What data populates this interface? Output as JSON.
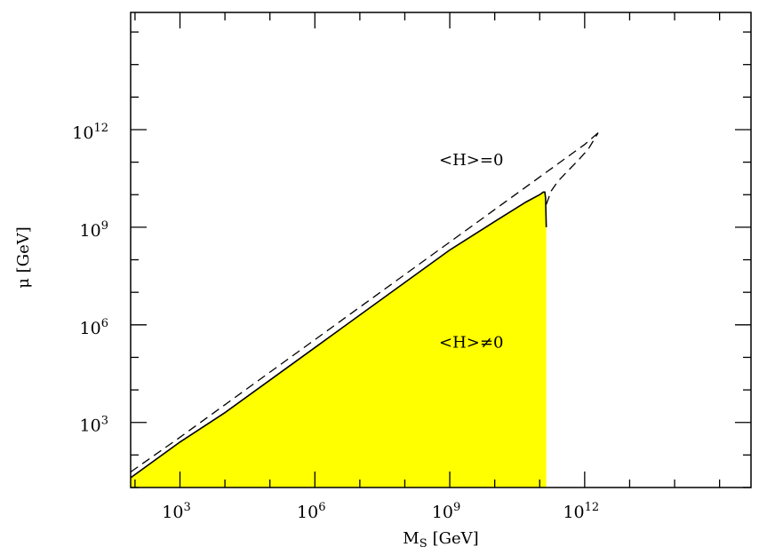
{
  "chart_data": {
    "type": "area",
    "xlabel": "M",
    "xlabel_sub": "S",
    "xlabel_unit": "[GeV]",
    "ylabel": "μ [GeV]",
    "x_scale": "log",
    "y_scale": "log",
    "xlim": [
      80,
      5000000000000000
    ],
    "ylim": [
      10,
      4000000000000000
    ],
    "x_ticks": [
      {
        "value": 1000,
        "base": "10",
        "exp": "3"
      },
      {
        "value": 1000000,
        "base": "10",
        "exp": "6"
      },
      {
        "value": 1000000000,
        "base": "10",
        "exp": "9"
      },
      {
        "value": 1000000000000,
        "base": "10",
        "exp": "12"
      }
    ],
    "y_ticks": [
      {
        "value": 1000,
        "base": "10",
        "exp": "3"
      },
      {
        "value": 1000000,
        "base": "10",
        "exp": "6"
      },
      {
        "value": 1000000000,
        "base": "10",
        "exp": "9"
      },
      {
        "value": 1000000000000,
        "base": "10",
        "exp": "12"
      }
    ],
    "fill_color": "#ffff00",
    "series": [
      {
        "style": "solid",
        "fill": true,
        "x": [
          80,
          1000,
          10000,
          100000,
          1000000,
          10000000,
          100000000,
          1000000000,
          10000000000,
          50000000000,
          100000000000,
          120000000000,
          130000000000,
          135000000000,
          140000000000
        ],
        "y": [
          20,
          250,
          2000,
          20000,
          200000,
          2000000,
          20000000,
          200000000,
          1500000000,
          6000000000,
          10000000000,
          12000000000,
          12000000000,
          8000000000,
          1000000000
        ]
      },
      {
        "style": "dashed",
        "x": [
          80,
          1000,
          10000,
          100000,
          1000000,
          10000000,
          100000000,
          1000000000,
          10000000000,
          100000000000,
          1000000000000,
          2000000000000
        ],
        "y": [
          30,
          350,
          3500,
          35000,
          350000,
          3500000,
          35000000,
          350000000,
          3500000000,
          35000000000,
          350000000000,
          800000000000
        ]
      },
      {
        "style": "dashed",
        "x": [
          140000000000,
          180000000000,
          250000000000,
          400000000000,
          700000000000,
          1200000000000,
          2000000000000
        ],
        "y": [
          5000000000,
          13000000000,
          25000000000,
          50000000000,
          110000000000,
          250000000000,
          800000000000
        ]
      }
    ],
    "annotations": [
      {
        "text": "<H>=0",
        "x": 3000000000,
        "y": 80000000000
      },
      {
        "text": "<H>≠0",
        "x": 3000000000,
        "y": 200000
      }
    ],
    "grid": false,
    "legend": false
  }
}
